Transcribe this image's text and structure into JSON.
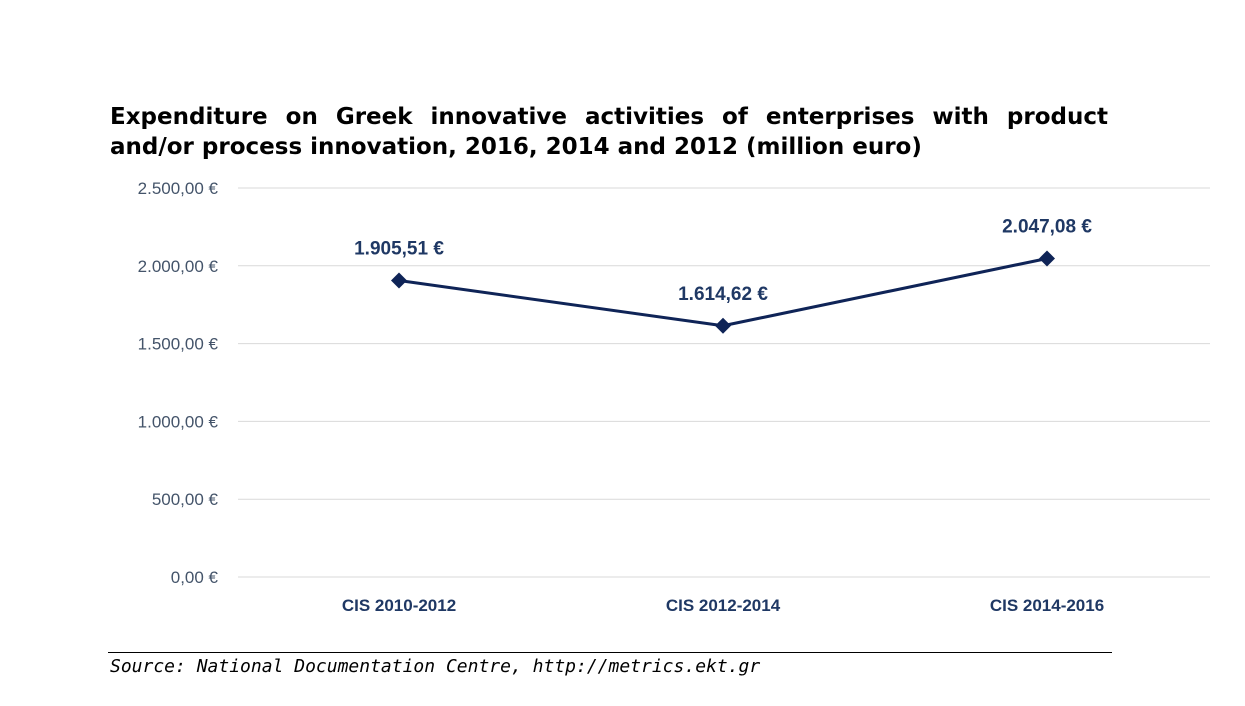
{
  "chart_data": {
    "type": "line",
    "title": "Expenditure on Greek innovative activities of enterprises with product and/or process innovation, 2016, 2014 and 2012 (million euro)",
    "categories": [
      "CIS 2010-2012",
      "CIS 2012-2014",
      "CIS 2014-2016"
    ],
    "series": [
      {
        "values": [
          1905.51,
          1614.62,
          2047.08
        ],
        "data_labels": [
          "1.905,51 €",
          "1.614,62 €",
          "2.047,08 €"
        ],
        "color": "#0f2457"
      }
    ],
    "ylim": [
      0,
      2500
    ],
    "y_ticks": [
      0,
      500,
      1000,
      1500,
      2000,
      2500
    ],
    "y_tick_labels": [
      "0,00 €",
      "500,00 €",
      "1.000,00 €",
      "1.500,00 €",
      "2.000,00 €",
      "2.500,00 €"
    ],
    "grid": true,
    "legend": "none",
    "xlabel": "",
    "ylabel": ""
  },
  "source": "Source: National Documentation Centre, http://metrics.ekt.gr",
  "colors": {
    "line": "#0f2457",
    "grid": "#d9d9d9",
    "tick_text": "#44546a",
    "label_text": "#1f3864"
  }
}
